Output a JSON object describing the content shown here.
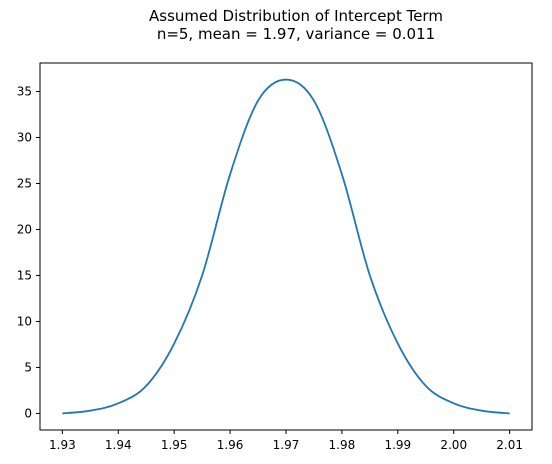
{
  "chart_data": {
    "type": "line",
    "title": "Assumed Distribution of Intercept Term",
    "subtitle": "n=5, mean = 1.97, variance = 0.011",
    "xlabel": "",
    "ylabel": "",
    "xlim": [
      1.926,
      2.014
    ],
    "ylim": [
      -1.8,
      38.1
    ],
    "x_ticks": [
      1.93,
      1.94,
      1.95,
      1.96,
      1.97,
      1.98,
      1.99,
      2.0,
      2.01
    ],
    "x_tick_labels": [
      "1.93",
      "1.94",
      "1.95",
      "1.96",
      "1.97",
      "1.98",
      "1.99",
      "2.00",
      "2.01"
    ],
    "y_ticks": [
      0,
      5,
      10,
      15,
      20,
      25,
      30,
      35
    ],
    "y_tick_labels": [
      "0",
      "5",
      "10",
      "15",
      "20",
      "25",
      "30",
      "35"
    ],
    "grid": false,
    "legend": "none",
    "series": [
      {
        "color": "#1f77b4",
        "x": [
          1.93,
          1.935,
          1.94,
          1.945,
          1.95,
          1.955,
          1.96,
          1.965,
          1.97,
          1.975,
          1.98,
          1.985,
          1.99,
          1.995,
          2.0,
          2.005,
          2.01
        ],
        "y": [
          0.0,
          0.3,
          1.1,
          3.0,
          7.6,
          15.0,
          26.0,
          34.0,
          36.3,
          34.0,
          26.0,
          15.0,
          7.6,
          3.0,
          1.1,
          0.3,
          0.0
        ]
      }
    ]
  }
}
